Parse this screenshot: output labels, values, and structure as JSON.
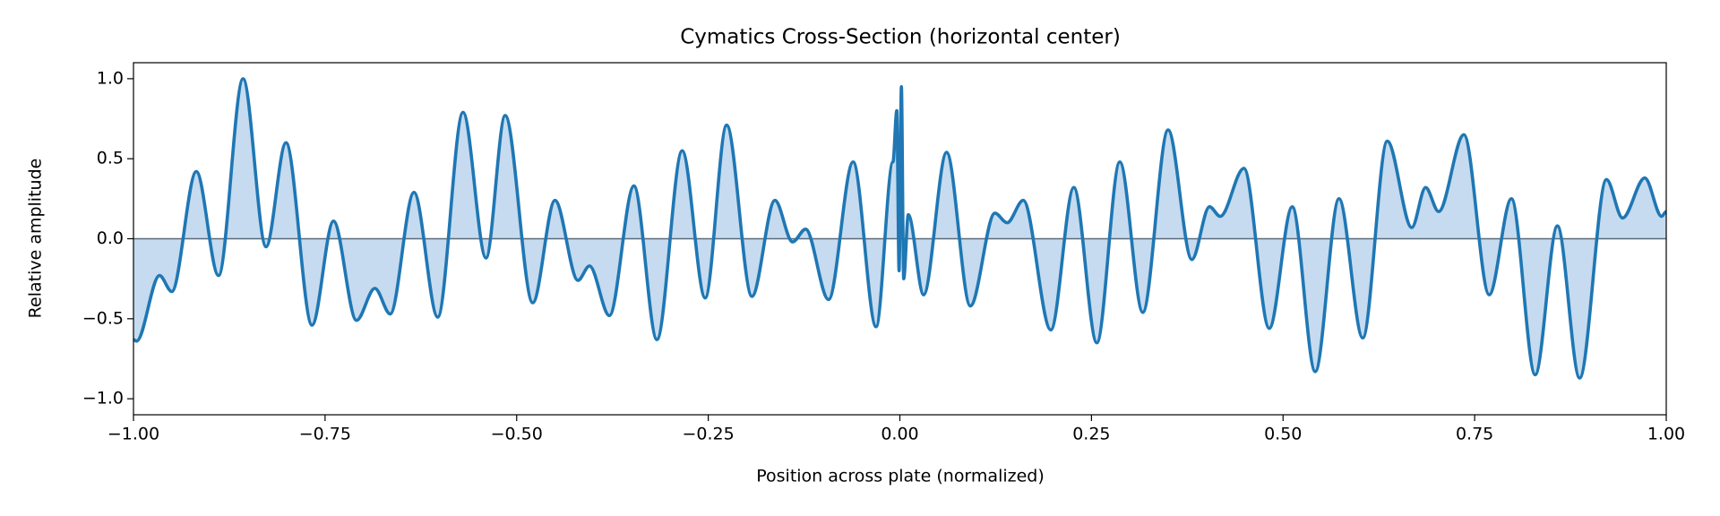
{
  "chart_data": {
    "type": "line",
    "title": "Cymatics Cross-Section (horizontal center)",
    "xlabel": "Position across plate (normalized)",
    "ylabel": "Relative amplitude",
    "x": [
      -1.0,
      -0.996,
      -0.966,
      -0.95,
      -0.918,
      -0.889,
      -0.857,
      -0.827,
      -0.801,
      -0.767,
      -0.739,
      -0.709,
      -0.685,
      -0.665,
      -0.634,
      -0.603,
      -0.57,
      -0.54,
      -0.515,
      -0.479,
      -0.45,
      -0.42,
      -0.405,
      -0.379,
      -0.347,
      -0.317,
      -0.284,
      -0.254,
      -0.226,
      -0.193,
      -0.163,
      -0.14,
      -0.123,
      -0.093,
      -0.061,
      -0.031,
      -0.009,
      -0.004,
      -0.001,
      0.002,
      0.005,
      0.011,
      0.031,
      0.061,
      0.092,
      0.124,
      0.14,
      0.161,
      0.197,
      0.227,
      0.257,
      0.287,
      0.317,
      0.35,
      0.381,
      0.404,
      0.418,
      0.449,
      0.482,
      0.512,
      0.542,
      0.573,
      0.604,
      0.636,
      0.668,
      0.686,
      0.703,
      0.736,
      0.769,
      0.798,
      0.829,
      0.858,
      0.887,
      0.922,
      0.943,
      0.972,
      0.994,
      1.0
    ],
    "series": [
      {
        "name": "amplitude",
        "color": "#1f77b4",
        "fill_color": "#c6dbef",
        "values": [
          -0.63,
          -0.64,
          -0.23,
          -0.33,
          0.42,
          -0.23,
          1.0,
          -0.05,
          0.6,
          -0.54,
          0.11,
          -0.51,
          -0.31,
          -0.47,
          0.29,
          -0.49,
          0.79,
          -0.12,
          0.77,
          -0.4,
          0.24,
          -0.26,
          -0.17,
          -0.48,
          0.33,
          -0.63,
          0.55,
          -0.37,
          0.71,
          -0.36,
          0.24,
          -0.02,
          0.06,
          -0.38,
          0.48,
          -0.55,
          0.48,
          0.8,
          -0.2,
          0.95,
          -0.25,
          0.15,
          -0.35,
          0.54,
          -0.42,
          0.16,
          0.1,
          0.24,
          -0.57,
          0.32,
          -0.65,
          0.48,
          -0.46,
          0.68,
          -0.13,
          0.2,
          0.14,
          0.44,
          -0.56,
          0.2,
          -0.83,
          0.25,
          -0.62,
          0.61,
          0.07,
          0.32,
          0.17,
          0.65,
          -0.35,
          0.25,
          -0.85,
          0.08,
          -0.87,
          0.37,
          0.13,
          0.38,
          0.14,
          0.17
        ]
      }
    ],
    "baseline": 0,
    "baseline_color": "#5a6a78",
    "xlim": [
      -1,
      1
    ],
    "xticks": [
      {
        "value": -1,
        "label": "−1.00"
      },
      {
        "value": -0.75,
        "label": "−0.75"
      },
      {
        "value": -0.5,
        "label": "−0.50"
      },
      {
        "value": -0.25,
        "label": "−0.25"
      },
      {
        "value": 0,
        "label": "0.00"
      },
      {
        "value": 0.25,
        "label": "0.25"
      },
      {
        "value": 0.5,
        "label": "0.50"
      },
      {
        "value": 0.75,
        "label": "0.75"
      },
      {
        "value": 1,
        "label": "1.00"
      }
    ],
    "ylim": [
      -1.1,
      1.1
    ],
    "yticks": [
      {
        "value": -1,
        "label": "−1.0"
      },
      {
        "value": -0.5,
        "label": "−0.5"
      },
      {
        "value": 0,
        "label": "0.0"
      },
      0.5,
      {
        "value": 1,
        "label": "1.0"
      }
    ]
  }
}
